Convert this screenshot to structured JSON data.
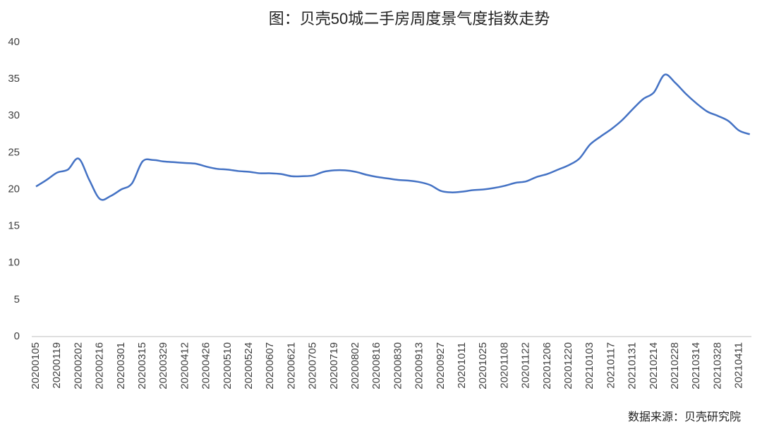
{
  "chart_data": {
    "type": "line",
    "title": "图：贝壳50城二手房周度景气度指数走势",
    "source": "数据来源：贝壳研究院",
    "categories": [
      "20200105",
      null,
      "20200119",
      null,
      "20200202",
      null,
      "20200216",
      null,
      "20200301",
      null,
      "20200315",
      null,
      "20200329",
      null,
      "20200412",
      null,
      "20200426",
      null,
      "20200510",
      null,
      "20200524",
      null,
      "20200607",
      null,
      "20200621",
      null,
      "20200705",
      null,
      "20200719",
      null,
      "20200802",
      null,
      "20200816",
      null,
      "20200830",
      null,
      "20200913",
      null,
      "20200927",
      null,
      "20201011",
      null,
      "20201025",
      null,
      "20201108",
      null,
      "20201122",
      null,
      "20201206",
      null,
      "20201220",
      null,
      "20210103",
      null,
      "20210117",
      null,
      "20210131",
      null,
      "20210214",
      null,
      "20210228",
      null,
      "20210314",
      null,
      "20210328",
      null,
      "20210411",
      null
    ],
    "series": [
      {
        "name": "景气度指数",
        "color": "#4472c4",
        "values": [
          20.4,
          21.3,
          22.3,
          22.7,
          24.2,
          21.3,
          18.7,
          19.1,
          20.0,
          20.8,
          23.8,
          24.0,
          23.8,
          23.7,
          23.6,
          23.5,
          23.1,
          22.8,
          22.7,
          22.5,
          22.4,
          22.2,
          22.2,
          22.1,
          21.8,
          21.8,
          21.9,
          22.4,
          22.6,
          22.6,
          22.4,
          22.0,
          21.7,
          21.5,
          21.3,
          21.2,
          21.0,
          20.6,
          19.8,
          19.6,
          19.7,
          19.9,
          20.0,
          20.2,
          20.5,
          20.9,
          21.1,
          21.7,
          22.1,
          22.7,
          23.3,
          24.2,
          26.1,
          27.2,
          28.2,
          29.4,
          30.9,
          32.3,
          33.2,
          35.6,
          34.5,
          33.0,
          31.7,
          30.6,
          30.0,
          29.3,
          28.0,
          27.5
        ]
      }
    ],
    "ylim": [
      0,
      40
    ],
    "yticks": [
      0,
      5,
      10,
      15,
      20,
      25,
      30,
      35,
      40
    ],
    "grid": false
  }
}
